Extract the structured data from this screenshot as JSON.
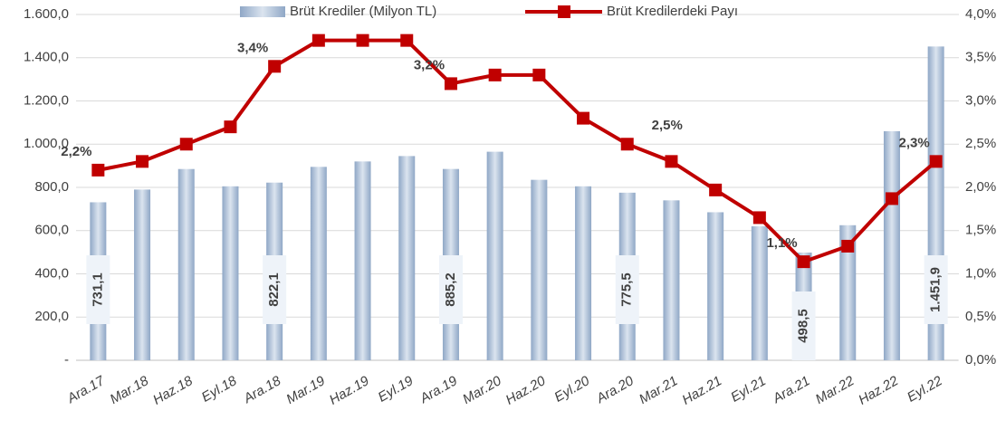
{
  "chart_data": {
    "type": "combo",
    "categories": [
      "Ara.17",
      "Mar.18",
      "Haz.18",
      "Eyl.18",
      "Ara.18",
      "Mar.19",
      "Haz.19",
      "Eyl.19",
      "Ara.19",
      "Mar.20",
      "Haz.20",
      "Eyl.20",
      "Ara.20",
      "Mar.21",
      "Haz.21",
      "Eyl.21",
      "Ara.21",
      "Mar.22",
      "Haz.22",
      "Eyl.22"
    ],
    "series": [
      {
        "name": "Brüt Krediler (Milyon TL)",
        "type": "bar",
        "color": "#8fa7c6",
        "values": [
          731.1,
          790,
          885,
          805,
          822.1,
          895,
          920,
          945,
          885.2,
          965,
          835,
          805,
          775.5,
          740,
          685,
          620,
          498.5,
          625,
          1060,
          1451.9
        ],
        "value_labels": [
          "731,1",
          null,
          null,
          null,
          "822,1",
          null,
          null,
          null,
          "885,2",
          null,
          null,
          null,
          "775,5",
          null,
          null,
          null,
          "498,5",
          null,
          null,
          "1.451,9"
        ]
      },
      {
        "name": "Brüt Kredilerdeki Payı",
        "type": "line",
        "axis": "y2",
        "color": "#c00000",
        "values": [
          2.2,
          2.3,
          2.5,
          2.7,
          3.4,
          3.7,
          3.7,
          3.7,
          3.2,
          3.3,
          3.3,
          2.8,
          2.5,
          2.3,
          1.97,
          1.65,
          1.14,
          1.32,
          1.87,
          2.3
        ],
        "value_labels": [
          "2,2%",
          null,
          null,
          null,
          "3,4%",
          null,
          null,
          null,
          "3,2%",
          null,
          null,
          null,
          "2,5%",
          null,
          null,
          null,
          "1,1%",
          null,
          null,
          "2,3%"
        ]
      }
    ],
    "ylim": [
      0,
      1600
    ],
    "yticks": [
      {
        "value": 0,
        "label": "-"
      },
      {
        "value": 200,
        "label": "200,0"
      },
      {
        "value": 400,
        "label": "400,0"
      },
      {
        "value": 600,
        "label": "600,0"
      },
      {
        "value": 800,
        "label": "800,0"
      },
      {
        "value": 1000,
        "label": "1.000,0"
      },
      {
        "value": 1200,
        "label": "1.200,0"
      },
      {
        "value": 1400,
        "label": "1.400,0"
      },
      {
        "value": 1600,
        "label": "1.600,0"
      }
    ],
    "y2lim": [
      0,
      4
    ],
    "y2ticks": [
      {
        "value": 0,
        "label": "0,0%"
      },
      {
        "value": 0.5,
        "label": "0,5%"
      },
      {
        "value": 1,
        "label": "1,0%"
      },
      {
        "value": 1.5,
        "label": "1,5%"
      },
      {
        "value": 2,
        "label": "2,0%"
      },
      {
        "value": 2.5,
        "label": "2,5%"
      },
      {
        "value": 3,
        "label": "3,0%"
      },
      {
        "value": 3.5,
        "label": "3,5%"
      },
      {
        "value": 4,
        "label": "4,0%"
      }
    ],
    "grid": true
  }
}
